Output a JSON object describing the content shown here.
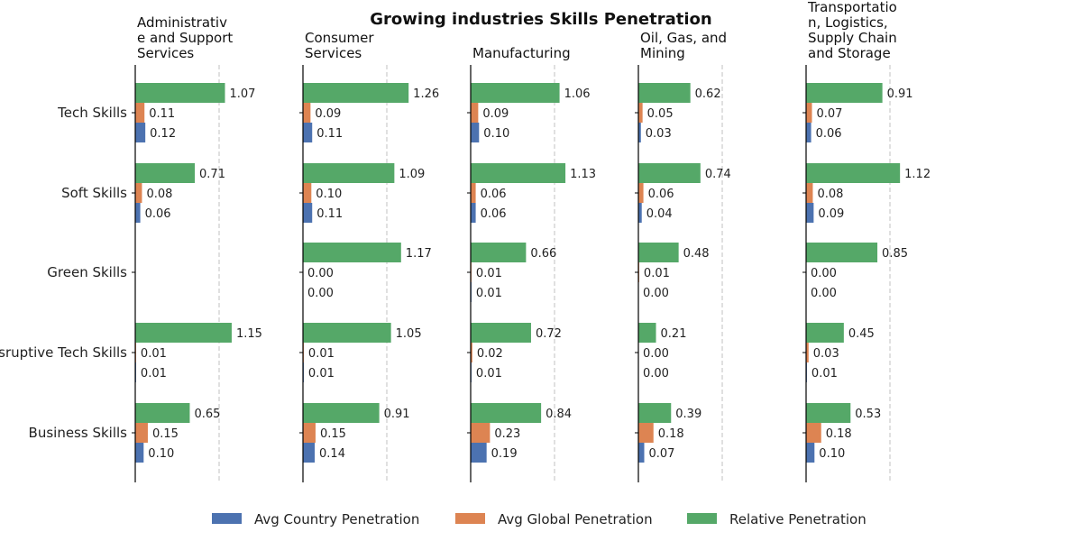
{
  "chart_data": {
    "type": "bar",
    "orientation": "horizontal",
    "title": "Growing industries Skills Penetration",
    "categories": [
      "Tech Skills",
      "Soft Skills",
      "Green Skills",
      "Disruptive Tech Skills",
      "Business Skills"
    ],
    "series_names": [
      "Avg Country Penetration",
      "Avg Global Penetration",
      "Relative Penetration"
    ],
    "colors": {
      "Avg Country Penetration": "#4c72b0",
      "Avg Global Penetration": "#dd8452",
      "Relative Penetration": "#55a868"
    },
    "reference_line": 1.0,
    "legend": "bottom",
    "panels": [
      {
        "title_lines": [
          "Administrativ",
          "e and Support",
          "Services"
        ],
        "values": [
          [
            0.12,
            0.11,
            1.07
          ],
          [
            0.06,
            0.08,
            0.71
          ],
          null,
          [
            0.01,
            0.01,
            1.15
          ],
          [
            0.1,
            0.15,
            0.65
          ]
        ]
      },
      {
        "title_lines": [
          "Consumer",
          "Services"
        ],
        "values": [
          [
            0.11,
            0.09,
            1.26
          ],
          [
            0.11,
            0.1,
            1.09
          ],
          [
            0.0,
            0.0,
            1.17
          ],
          [
            0.01,
            0.01,
            1.05
          ],
          [
            0.14,
            0.15,
            0.91
          ]
        ]
      },
      {
        "title_lines": [
          "Manufacturing"
        ],
        "values": [
          [
            0.1,
            0.09,
            1.06
          ],
          [
            0.06,
            0.06,
            1.13
          ],
          [
            0.01,
            0.01,
            0.66
          ],
          [
            0.01,
            0.02,
            0.72
          ],
          [
            0.19,
            0.23,
            0.84
          ]
        ]
      },
      {
        "title_lines": [
          "Oil, Gas, and",
          "Mining"
        ],
        "values": [
          [
            0.03,
            0.05,
            0.62
          ],
          [
            0.04,
            0.06,
            0.74
          ],
          [
            0.0,
            0.01,
            0.48
          ],
          [
            0.0,
            0.0,
            0.21
          ],
          [
            0.07,
            0.18,
            0.39
          ]
        ]
      },
      {
        "title_lines": [
          "Transportatio",
          "n, Logistics,",
          "Supply Chain",
          "and Storage"
        ],
        "values": [
          [
            0.06,
            0.07,
            0.91
          ],
          [
            0.09,
            0.08,
            1.12
          ],
          [
            0.0,
            0.0,
            0.85
          ],
          [
            0.01,
            0.03,
            0.45
          ],
          [
            0.1,
            0.18,
            0.53
          ]
        ]
      }
    ]
  }
}
